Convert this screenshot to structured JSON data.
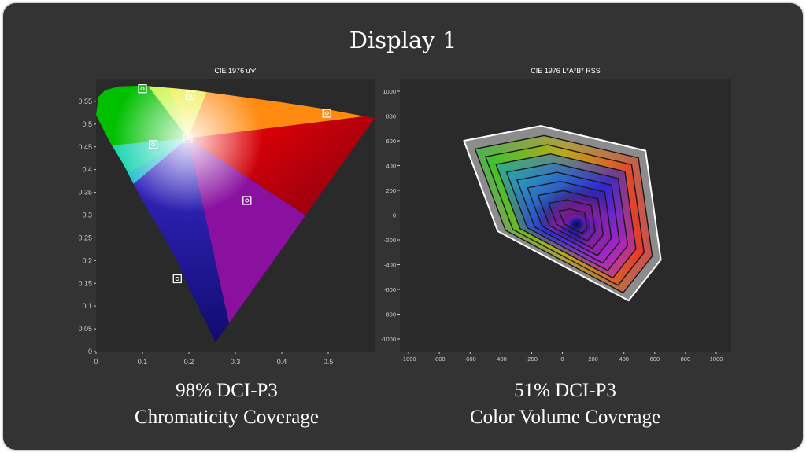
{
  "page": {
    "title": "Display 1"
  },
  "colors": {
    "card_background": "#333333",
    "plot_background": "#2a2a2a",
    "marker": "#ffffff",
    "hull": "#ffffff"
  },
  "chart_data": [
    {
      "type": "scatter",
      "title": "CIE 1976 u′v′",
      "xlim": [
        0,
        0.6
      ],
      "ylim": [
        0,
        0.6
      ],
      "x_ticks": [
        0,
        0.1,
        0.2,
        0.3,
        0.4,
        0.5
      ],
      "x_tick_labels": [
        "0",
        "0.1",
        "0.2",
        "0.3",
        "0.4",
        "0.5"
      ],
      "y_ticks": [
        0,
        0.05,
        0.1,
        0.15,
        0.2,
        0.25,
        0.3,
        0.35,
        0.4,
        0.45,
        0.5,
        0.55
      ],
      "y_tick_labels": [
        "0",
        "0.05",
        "0.1",
        "0.15",
        "0.2",
        "0.25",
        "0.3",
        "0.35",
        "0.4",
        "0.45",
        "0.5",
        "0.55"
      ],
      "locus": {
        "u": [
          0.257,
          0.234,
          0.2,
          0.174,
          0.13,
          0.09,
          0.06,
          0.03,
          0.0,
          0.005,
          0.02,
          0.05,
          0.1,
          0.2,
          0.3,
          0.4,
          0.5,
          0.6
        ],
        "v": [
          0.02,
          0.07,
          0.14,
          0.2,
          0.28,
          0.35,
          0.41,
          0.46,
          0.52,
          0.56,
          0.575,
          0.583,
          0.585,
          0.576,
          0.562,
          0.548,
          0.532,
          0.513
        ]
      },
      "markers": {
        "u": [
          0.1,
          0.203,
          0.497,
          0.123,
          0.198,
          0.325,
          0.175
        ],
        "v": [
          0.578,
          0.563,
          0.524,
          0.455,
          0.469,
          0.332,
          0.16
        ]
      },
      "caption_lines": [
        "98% DCI-P3",
        "Chromaticity Coverage"
      ]
    },
    {
      "type": "area",
      "title": "CIE 1976 L*A*B* RSS",
      "xlim": [
        -1000,
        1000
      ],
      "ylim": [
        -1000,
        1000
      ],
      "x_ticks": [
        -1000,
        -800,
        -600,
        -400,
        -200,
        0,
        200,
        400,
        600,
        800,
        1000
      ],
      "x_tick_labels": [
        "-1000",
        "-800",
        "-600",
        "-400",
        "-200",
        "0",
        "200",
        "400",
        "600",
        "800",
        "1000"
      ],
      "y_ticks": [
        1000,
        800,
        600,
        400,
        200,
        0,
        -200,
        -400,
        -600,
        -800,
        -1000
      ],
      "y_tick_labels": [
        "1000",
        "800",
        "600",
        "400",
        "200",
        "0",
        "-200",
        "-400",
        "-600",
        "-800",
        "-1000"
      ],
      "outer_hull": {
        "a": [
          -640,
          -140,
          540,
          640,
          430,
          -420,
          -640
        ],
        "b": [
          600,
          720,
          520,
          -360,
          -690,
          -130,
          600
        ]
      },
      "caption_lines": [
        "51% DCI-P3",
        "Color Volume Coverage"
      ]
    }
  ]
}
